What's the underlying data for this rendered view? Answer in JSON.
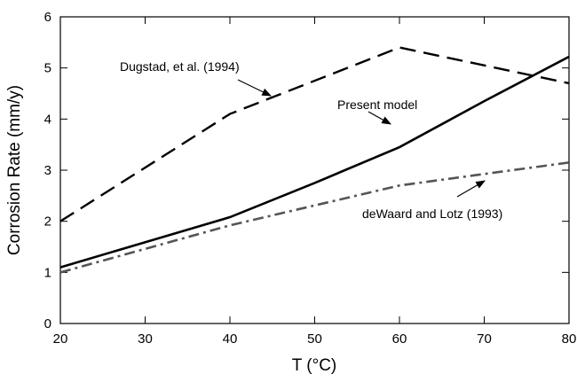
{
  "chart_data": {
    "type": "line",
    "xlabel": "T (°C)",
    "ylabel": "Corrosion Rate (mm/y)",
    "xlim": [
      20,
      80
    ],
    "xticks": [
      20,
      30,
      40,
      50,
      60,
      70,
      80
    ],
    "ylim": [
      0,
      6
    ],
    "yticks": [
      0,
      1,
      2,
      3,
      4,
      5,
      6
    ],
    "series": [
      {
        "name": "Dugstad, et al. (1994)",
        "color": "#000000",
        "style": "dashed",
        "x": [
          20,
          40,
          60,
          80
        ],
        "values": [
          2.0,
          4.1,
          5.4,
          4.7
        ]
      },
      {
        "name": "Present model",
        "color": "#000000",
        "style": "solid",
        "x": [
          20,
          40,
          50,
          60,
          70,
          80
        ],
        "values": [
          1.1,
          2.08,
          2.75,
          3.45,
          4.35,
          5.22
        ]
      },
      {
        "name": "deWaard and Lotz (1993)",
        "color": "#555555",
        "style": "dashdot",
        "x": [
          20,
          40,
          60,
          80
        ],
        "values": [
          1.0,
          1.92,
          2.7,
          3.15
        ]
      }
    ]
  }
}
